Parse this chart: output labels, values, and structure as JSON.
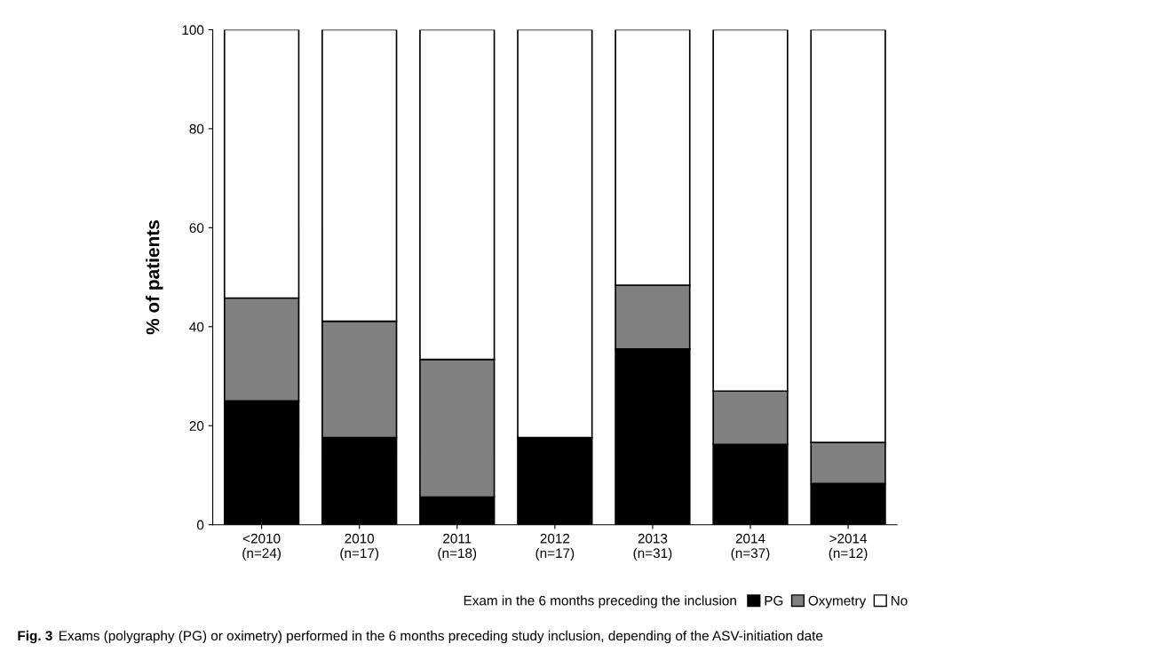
{
  "chart_data": {
    "type": "bar",
    "stacked": true,
    "ylabel": "% of patients",
    "legend_title": "Exam in the 6 months preceding the inclusion",
    "legend": "bottom right",
    "categories": [
      "<2010\n(n=24)",
      "2010\n(n=17)",
      "2011\n(n=18)",
      "2012\n(n=17)",
      "2013\n(n=31)",
      "2014\n(n=37)",
      ">2014\n(n=12)"
    ],
    "series": [
      {
        "name": "PG",
        "color": "#000000",
        "values": [
          25.0,
          17.6,
          5.6,
          17.6,
          35.5,
          16.2,
          8.3
        ]
      },
      {
        "name": "Oxymetry",
        "color": "#808080",
        "values": [
          20.8,
          23.5,
          27.8,
          0,
          12.9,
          10.8,
          8.3
        ]
      },
      {
        "name": "No",
        "color": "#ffffff",
        "values": [
          54.2,
          58.9,
          66.6,
          82.4,
          51.6,
          73.0,
          83.4
        ]
      }
    ],
    "ylim": [
      0,
      100
    ],
    "yticks": [
      0,
      20,
      40,
      60,
      80,
      100
    ],
    "grid": false,
    "annotations": [
      "Fig. 3",
      "Exams (polygraphy (PG) or oximetry) performed in the 6 months preceding study inclusion, depending of the ASV-initiation date"
    ]
  }
}
